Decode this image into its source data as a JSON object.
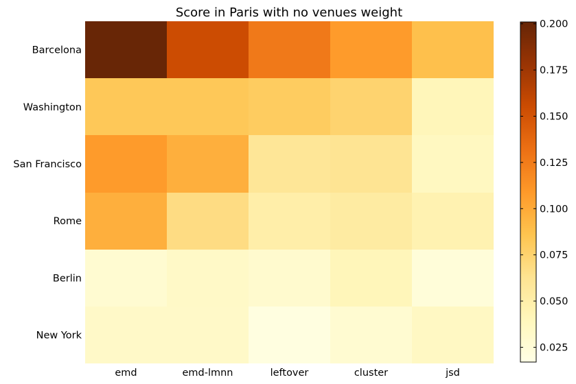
{
  "chart_data": {
    "type": "heatmap",
    "title": "Score in Paris with no venues weight",
    "columns": [
      "emd",
      "emd-lmnn",
      "leftover",
      "cluster",
      "jsd"
    ],
    "rows": [
      "Barcelona",
      "Washington",
      "San Francisco",
      "Rome",
      "Berlin",
      "New York"
    ],
    "values": [
      [
        0.2,
        0.155,
        0.127,
        0.108,
        0.088
      ],
      [
        0.083,
        0.083,
        0.08,
        0.075,
        0.041
      ],
      [
        0.108,
        0.097,
        0.06,
        0.062,
        0.037
      ],
      [
        0.097,
        0.068,
        0.05,
        0.054,
        0.046
      ],
      [
        0.028,
        0.034,
        0.03,
        0.041,
        0.024
      ],
      [
        0.033,
        0.033,
        0.02,
        0.028,
        0.036
      ]
    ],
    "colorbar": {
      "min": 0.017,
      "max": 0.201,
      "ticks": [
        0.025,
        0.05,
        0.075,
        0.1,
        0.125,
        0.15,
        0.175,
        0.2
      ],
      "tick_labels": [
        "0.025",
        "0.050",
        "0.075",
        "0.100",
        "0.125",
        "0.150",
        "0.175",
        "0.200"
      ],
      "colormap": [
        "#ffffe5",
        "#fff7bc",
        "#fee391",
        "#fec44f",
        "#fe9929",
        "#ec7014",
        "#cc4c02",
        "#993404",
        "#662506"
      ]
    },
    "grid": false
  }
}
